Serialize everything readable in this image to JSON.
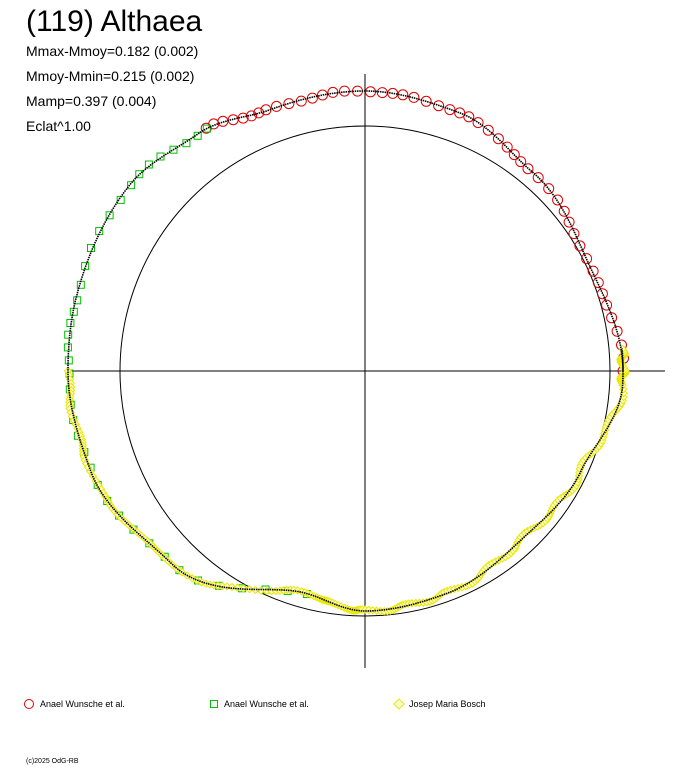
{
  "title": "(119) Althaea",
  "stats": {
    "line1": "Mmax-Mmoy=0.182 (0.002)",
    "line2": "Mmoy-Mmin=0.215 (0.002)",
    "line3": "Mamp=0.397 (0.004)",
    "line4": "Eclat^1.00"
  },
  "legend": [
    {
      "label": "Anael Wunsche et al.",
      "symbol": "circle",
      "color": "#e00000"
    },
    {
      "label": "Anael Wunsche et al.",
      "symbol": "square",
      "color": "#00c000"
    },
    {
      "label": "Josep Maria Bosch",
      "symbol": "diamond",
      "color": "#e8e800"
    }
  ],
  "copyright": "(c)2025 OdG-RB",
  "chart_data": {
    "type": "scatter",
    "subtype": "polar",
    "grid": false,
    "reference_circle": true,
    "axes": "crosshair",
    "series": [
      {
        "name": "Anael Wunsche et al.",
        "marker": "circle",
        "color": "#e00000",
        "phase_start": 0.235,
        "phase_end": 0.515,
        "count": 50,
        "reversed": false
      },
      {
        "name": "Anael Wunsche et al.",
        "marker": "square",
        "color": "#00c000",
        "phase_start": 0.515,
        "phase_end": 0.985,
        "count": 40,
        "reversed": false
      },
      {
        "name": "Josep Maria Bosch",
        "marker": "diamond",
        "color": "#e8e800",
        "phase_start": 0.0,
        "phase_end": 0.44,
        "count": 260,
        "reversed": true
      }
    ]
  }
}
